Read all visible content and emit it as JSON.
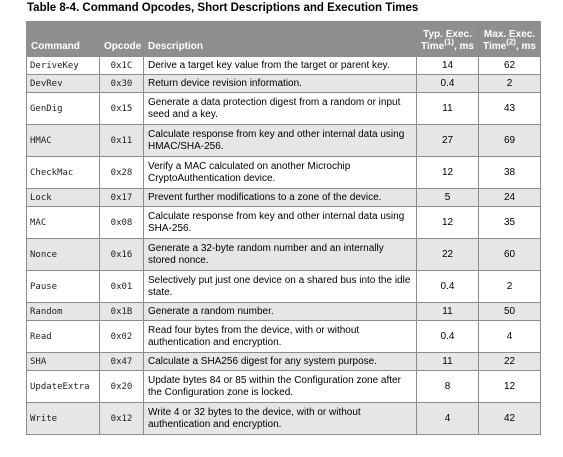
{
  "caption": "Table 8-4. Command Opcodes, Short Descriptions and Execution Times",
  "headers": {
    "command": "Command",
    "opcode": "Opcode",
    "description": "Description",
    "typ_line1": "Typ. Exec.",
    "typ_line2_pre": "Time",
    "typ_note": "(1)",
    "typ_line2_post": ", ms",
    "max_line1": "Max. Exec.",
    "max_line2_pre": "Time",
    "max_note": "(2)",
    "max_line2_post": ", ms"
  },
  "rows": [
    {
      "command": "DeriveKey",
      "opcode": "0x1C",
      "description": "Derive a target key value from the target or parent key.",
      "typ": "14",
      "max": "62"
    },
    {
      "command": "DevRev",
      "opcode": "0x30",
      "description": "Return device revision information.",
      "typ": "0.4",
      "max": "2"
    },
    {
      "command": "GenDig",
      "opcode": "0x15",
      "description": "Generate a data protection digest from a random or input seed and a key.",
      "typ": "11",
      "max": "43"
    },
    {
      "command": "HMAC",
      "opcode": "0x11",
      "description": "Calculate response from key and other internal data using HMAC/SHA-256.",
      "typ": "27",
      "max": "69"
    },
    {
      "command": "CheckMac",
      "opcode": "0x28",
      "description": "Verify a MAC calculated on another Microchip CryptoAuthentication device.",
      "typ": "12",
      "max": "38"
    },
    {
      "command": "Lock",
      "opcode": "0x17",
      "description": "Prevent further modifications to a zone of the device.",
      "typ": "5",
      "max": "24"
    },
    {
      "command": "MAC",
      "opcode": "0x08",
      "description": "Calculate response from key and other internal data using SHA-256.",
      "typ": "12",
      "max": "35"
    },
    {
      "command": "Nonce",
      "opcode": "0x16",
      "description": "Generate a 32-byte random number and an internally stored nonce.",
      "typ": "22",
      "max": "60"
    },
    {
      "command": "Pause",
      "opcode": "0x01",
      "description": "Selectively put just one device on a shared bus into the idle state.",
      "typ": "0.4",
      "max": "2"
    },
    {
      "command": "Random",
      "opcode": "0x1B",
      "description": "Generate a random number.",
      "typ": "11",
      "max": "50"
    },
    {
      "command": "Read",
      "opcode": "0x02",
      "description": "Read four bytes from the device, with or without authentication and encryption.",
      "typ": "0.4",
      "max": "4"
    },
    {
      "command": "SHA",
      "opcode": "0x47",
      "description": "Calculate a SHA256 digest for any system purpose.",
      "typ": "11",
      "max": "22"
    },
    {
      "command": "UpdateExtra",
      "opcode": "0x20",
      "description": "Update bytes 84 or 85 within the Configuration zone after the Configuration zone is locked.",
      "typ": "8",
      "max": "12"
    },
    {
      "command": "Write",
      "opcode": "0x12",
      "description": "Write 4 or 32 bytes to the device, with or without authentication and encryption.",
      "typ": "4",
      "max": "42"
    }
  ]
}
